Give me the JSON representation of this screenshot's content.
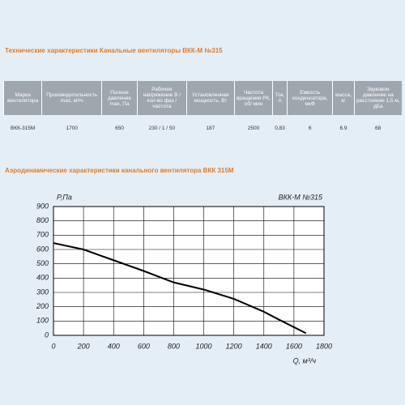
{
  "header": {
    "title": "Технические характеристики Канальные вентиляторы ВКК-М №315"
  },
  "table": {
    "headers": [
      "Марка вентилятора",
      "Производительность max, м³/ч",
      "Полное давление max, Па",
      "Рабочее напряжение В / кол-во фаз / частота",
      "Установленная мощность, Вт",
      "Частота вращения РК, об/ мин",
      "Ток, А",
      "Емкость конденсатора, мкФ",
      "масса, кг",
      "Звуковое давление на расстоянии 1,5 м, дБа"
    ],
    "rows": [
      [
        "ВКК-315М",
        "1700",
        "650",
        "230 / 1 / 50",
        "187",
        "2500",
        "0,83",
        "6",
        "6.9",
        "68"
      ]
    ]
  },
  "section": {
    "title": "Аэродинамические характеристики канального вентилятора ВКК 315М"
  },
  "chart_data": {
    "type": "line",
    "title": "ВКК-М №315",
    "y_label": "P,Па",
    "x_label": "Q, м³/ч",
    "x": [
      0,
      200,
      400,
      600,
      800,
      1000,
      1200,
      1400,
      1500,
      1680
    ],
    "series": [
      {
        "name": "ВКК-М №315",
        "color": "#000000",
        "values": [
          645,
          600,
          525,
          450,
          370,
          320,
          255,
          165,
          110,
          15
        ]
      }
    ],
    "xlim": [
      0,
      1800
    ],
    "xticks": [
      0,
      200,
      400,
      600,
      800,
      1000,
      1200,
      1400,
      1600,
      1800
    ],
    "ylim": [
      0,
      900
    ],
    "yticks": [
      0,
      100,
      200,
      300,
      400,
      500,
      600,
      700,
      800,
      900
    ],
    "grid": true
  }
}
